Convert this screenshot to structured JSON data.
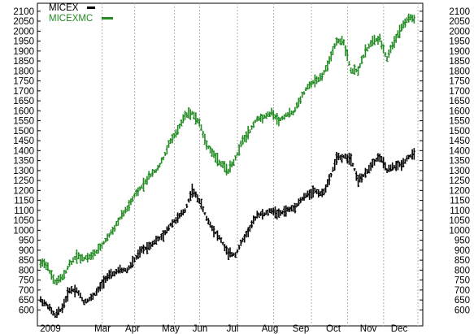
{
  "chart_data": {
    "type": "line",
    "style": "ohlc",
    "grid": true,
    "legend_placement": "top-left",
    "ylim": [
      520,
      2140
    ],
    "yticks": [
      600,
      650,
      700,
      750,
      800,
      850,
      900,
      950,
      1000,
      1050,
      1100,
      1150,
      1200,
      1250,
      1300,
      1350,
      1400,
      1450,
      1500,
      1550,
      1600,
      1650,
      1700,
      1750,
      1800,
      1850,
      1900,
      1950,
      2000,
      2050,
      2100
    ],
    "yticks_right": [
      600,
      650,
      700,
      750,
      800,
      850,
      900,
      950,
      1000,
      1050,
      1100,
      1150,
      1200,
      1250,
      1300,
      1350,
      1400,
      1450,
      1500,
      1550,
      1600,
      1650,
      1700,
      1750,
      1800,
      1850,
      1900,
      1950,
      2000,
      2050,
      2100
    ],
    "xticks": [
      "2009",
      "Mar",
      "Apr",
      "May",
      "Jun",
      "Jul",
      "Aug",
      "Sep",
      "Oct",
      "Nov",
      "Dec"
    ],
    "colors": {
      "MICEX": "#000000",
      "MICEXMC": "#228b22",
      "grid": "#b0b0b0"
    },
    "series": [
      {
        "name": "MICEX",
        "points": [
          [
            0,
            650
          ],
          [
            4,
            620
          ],
          [
            8,
            570
          ],
          [
            12,
            610
          ],
          [
            16,
            700
          ],
          [
            20,
            700
          ],
          [
            24,
            640
          ],
          [
            28,
            660
          ],
          [
            32,
            700
          ],
          [
            36,
            760
          ],
          [
            40,
            780
          ],
          [
            44,
            800
          ],
          [
            48,
            800
          ],
          [
            52,
            850
          ],
          [
            56,
            900
          ],
          [
            60,
            920
          ],
          [
            64,
            950
          ],
          [
            68,
            970
          ],
          [
            72,
            1030
          ],
          [
            76,
            1060
          ],
          [
            80,
            1100
          ],
          [
            84,
            1200
          ],
          [
            88,
            1150
          ],
          [
            92,
            1060
          ],
          [
            96,
            1000
          ],
          [
            100,
            950
          ],
          [
            104,
            880
          ],
          [
            108,
            880
          ],
          [
            112,
            950
          ],
          [
            116,
            1010
          ],
          [
            120,
            1080
          ],
          [
            124,
            1080
          ],
          [
            128,
            1100
          ],
          [
            132,
            1080
          ],
          [
            136,
            1100
          ],
          [
            140,
            1110
          ],
          [
            144,
            1150
          ],
          [
            148,
            1180
          ],
          [
            152,
            1200
          ],
          [
            156,
            1180
          ],
          [
            160,
            1250
          ],
          [
            164,
            1360
          ],
          [
            168,
            1370
          ],
          [
            172,
            1360
          ],
          [
            176,
            1250
          ],
          [
            180,
            1280
          ],
          [
            184,
            1340
          ],
          [
            188,
            1370
          ],
          [
            192,
            1300
          ],
          [
            196,
            1320
          ],
          [
            200,
            1330
          ],
          [
            204,
            1370
          ],
          [
            207,
            1380
          ]
        ]
      },
      {
        "name": "MICEXMC",
        "points": [
          [
            0,
            840
          ],
          [
            4,
            810
          ],
          [
            8,
            740
          ],
          [
            12,
            760
          ],
          [
            16,
            830
          ],
          [
            20,
            870
          ],
          [
            24,
            860
          ],
          [
            28,
            870
          ],
          [
            32,
            900
          ],
          [
            36,
            950
          ],
          [
            40,
            1000
          ],
          [
            44,
            1060
          ],
          [
            48,
            1110
          ],
          [
            52,
            1170
          ],
          [
            56,
            1220
          ],
          [
            60,
            1270
          ],
          [
            64,
            1300
          ],
          [
            68,
            1360
          ],
          [
            72,
            1450
          ],
          [
            76,
            1500
          ],
          [
            80,
            1580
          ],
          [
            84,
            1590
          ],
          [
            88,
            1540
          ],
          [
            92,
            1430
          ],
          [
            96,
            1380
          ],
          [
            100,
            1330
          ],
          [
            104,
            1300
          ],
          [
            108,
            1360
          ],
          [
            112,
            1450
          ],
          [
            116,
            1500
          ],
          [
            120,
            1560
          ],
          [
            124,
            1570
          ],
          [
            128,
            1590
          ],
          [
            132,
            1550
          ],
          [
            136,
            1580
          ],
          [
            140,
            1590
          ],
          [
            144,
            1660
          ],
          [
            148,
            1720
          ],
          [
            152,
            1750
          ],
          [
            156,
            1770
          ],
          [
            160,
            1850
          ],
          [
            164,
            1950
          ],
          [
            168,
            1950
          ],
          [
            172,
            1800
          ],
          [
            176,
            1800
          ],
          [
            180,
            1900
          ],
          [
            184,
            1950
          ],
          [
            188,
            1960
          ],
          [
            192,
            1860
          ],
          [
            196,
            1950
          ],
          [
            200,
            2020
          ],
          [
            204,
            2070
          ],
          [
            207,
            2060
          ]
        ]
      }
    ]
  }
}
